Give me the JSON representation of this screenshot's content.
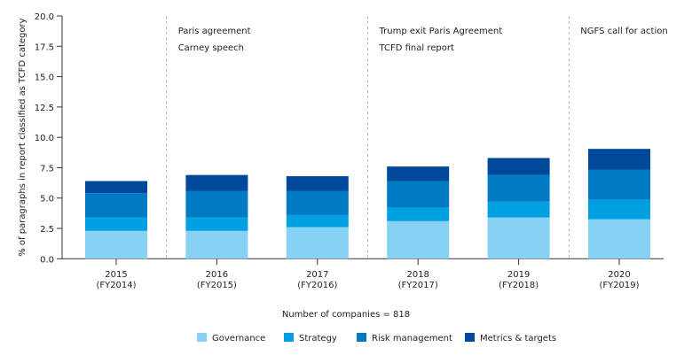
{
  "chart_data": {
    "type": "bar",
    "stacked": true,
    "categories": [
      "2015\n(FY2014)",
      "2016\n(FY2015)",
      "2017\n(FY2016)",
      "2018\n(FY2017)",
      "2019\n(FY2018)",
      "2020\n(FY2019)"
    ],
    "series": [
      {
        "name": "Governance",
        "color": "#87d1f5",
        "values": [
          2.3,
          2.3,
          2.6,
          3.1,
          3.4,
          3.25
        ]
      },
      {
        "name": "Strategy",
        "color": "#00a0e3",
        "values": [
          1.1,
          1.1,
          1.0,
          1.1,
          1.3,
          1.6
        ]
      },
      {
        "name": "Risk management",
        "color": "#007ac2",
        "values": [
          2.0,
          2.2,
          2.0,
          2.2,
          2.2,
          2.5
        ]
      },
      {
        "name": "Metrics & targets",
        "color": "#00489a",
        "values": [
          1.0,
          1.3,
          1.2,
          1.2,
          1.4,
          1.7
        ]
      }
    ],
    "ylabel": "% of paragraphs in report classified as TCFD category",
    "xlabel": "Number of companies = 818",
    "ylim": [
      0,
      20
    ],
    "yticks": [
      "0.0",
      "2.5",
      "5.0",
      "7.5",
      "10.0",
      "12.5",
      "15.0",
      "17.5",
      "20.0"
    ],
    "grid": false,
    "legend": "bottom",
    "annotations": [
      {
        "after_category_index": 0,
        "lines": [
          "Paris agreement",
          "Carney speech"
        ]
      },
      {
        "after_category_index": 2,
        "lines": [
          "Trump exit Paris Agreement",
          "TCFD final report"
        ]
      },
      {
        "after_category_index": 4,
        "lines": [
          "NGFS call for action"
        ]
      }
    ]
  }
}
